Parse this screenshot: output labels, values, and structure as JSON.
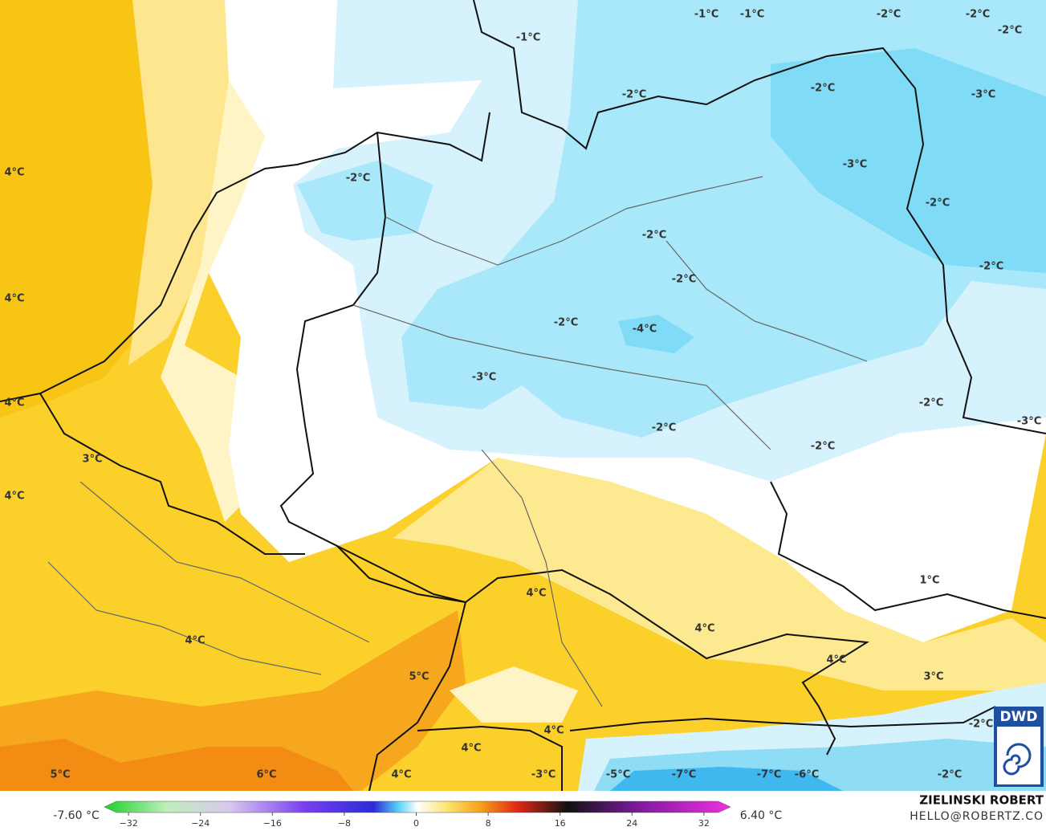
{
  "map_labels": [
    "4°C",
    "4°C",
    "4°C",
    "3°C",
    "4°C",
    "-1°C",
    "-1°C",
    "-2°C",
    "-2°C",
    "-2°C",
    "-1°C",
    "-2°C",
    "-2°C",
    "-3°C",
    "-2°C",
    "-3°C",
    "-2°C",
    "-2°C",
    "-2°C",
    "-2°C",
    "-2°C",
    "-4°C",
    "-3°C",
    "-2°C",
    "-3°C",
    "-2°C",
    "-2°C",
    "1°C",
    "4°C",
    "4°C",
    "4°C",
    "4°C",
    "3°C",
    "5°C",
    "4°C",
    "4°C",
    "-2°C",
    "4°C",
    "-3°C",
    "5°C",
    "6°C",
    "-5°C",
    "-7°C",
    "-7°C",
    "-6°C",
    "-2°C"
  ],
  "colorbar": {
    "min_label": "-7.60 °C",
    "max_label": "6.40 °C",
    "ticks": [
      {
        "value": -32,
        "label": "−32"
      },
      {
        "value": -24,
        "label": "−24"
      },
      {
        "value": -16,
        "label": "−16"
      },
      {
        "value": -8,
        "label": "−8"
      },
      0,
      8,
      16,
      24,
      32
    ]
  },
  "author": "ZIELINSKI ROBERT",
  "email": "HELLO@ROBERTZ.CO",
  "logo": "DWD"
}
